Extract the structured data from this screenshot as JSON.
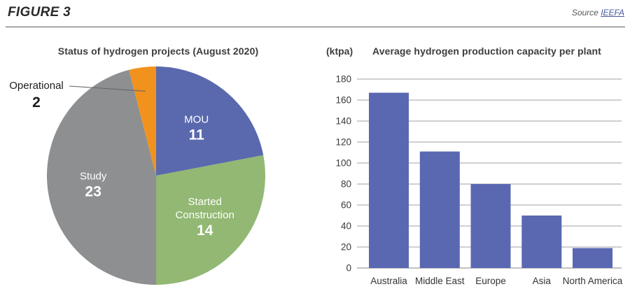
{
  "header": {
    "figure_label": "FIGURE 3",
    "source_label": "Source",
    "source_link": "IEEFA"
  },
  "chart_data": [
    {
      "type": "pie",
      "title": "Status of hydrogen projects (August 2020)",
      "total": 50,
      "start_angle": "top",
      "direction": "clockwise",
      "slices": [
        {
          "label": "MOU",
          "label_lines": [
            "MOU"
          ],
          "value": 11,
          "color": "#5a69ad",
          "label_placement": "inside",
          "label_color": "#ffffff"
        },
        {
          "label": "Started Construction",
          "label_lines": [
            "Started",
            "Construction"
          ],
          "value": 14,
          "color": "#92b873",
          "label_placement": "inside",
          "label_color": "#ffffff"
        },
        {
          "label": "Study",
          "label_lines": [
            "Study"
          ],
          "value": 23,
          "color": "#8d8f91",
          "label_placement": "inside",
          "label_color": "#ffffff"
        },
        {
          "label": "Operational",
          "label_lines": [
            "Operational"
          ],
          "value": 2,
          "color": "#f2921e",
          "label_placement": "outside",
          "label_color": "#1d1d1d"
        }
      ]
    },
    {
      "type": "bar",
      "title": "Average hydrogen production capacity per plant",
      "unit_label": "(ktpa)",
      "categories": [
        "Australia",
        "Middle East",
        "Europe",
        "Asia",
        "North America"
      ],
      "values": [
        167,
        111,
        80,
        50,
        19
      ],
      "bar_color": "#5a68b2",
      "ylim": [
        0,
        180
      ],
      "ytick_step": 20,
      "grid": true,
      "gridline_color": "#b4b5b7",
      "axis_text_color": "#3a3a3a",
      "legend": "none"
    }
  ]
}
